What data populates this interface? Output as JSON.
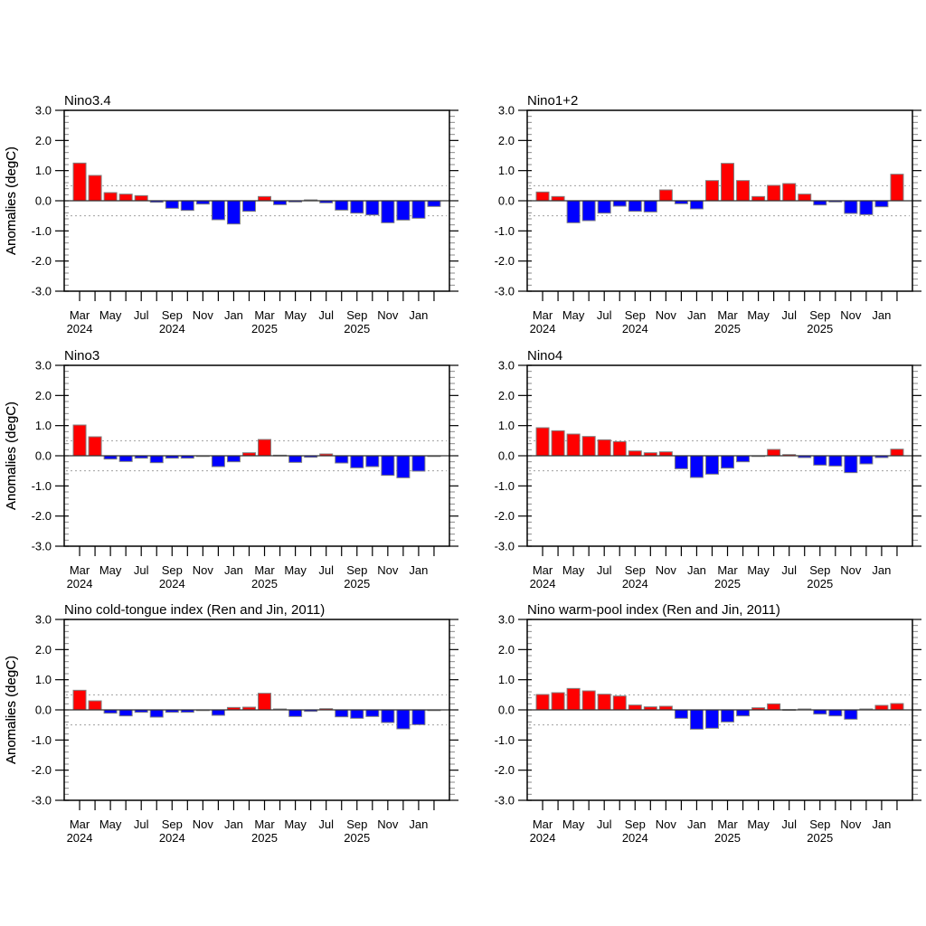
{
  "colors": {
    "positive": "#ff0000",
    "negative": "#0000ff",
    "bar_edge": "#808080",
    "frame": "#000000",
    "threshold_line": "#a0a0a0"
  },
  "months": [
    "Mar 2024",
    "Apr 2024",
    "May 2024",
    "Jun 2024",
    "Jul 2024",
    "Aug 2024",
    "Sep 2024",
    "Oct 2024",
    "Nov 2024",
    "Dec 2024",
    "Jan 2025",
    "Feb 2025",
    "Mar 2025",
    "Apr 2025",
    "May 2025",
    "Jun 2025",
    "Jul 2025",
    "Aug 2025",
    "Sep 2025",
    "Oct 2025",
    "Nov 2025",
    "Dec 2025",
    "Jan 2026",
    "Feb 2026"
  ],
  "chart_data": [
    {
      "type": "bar",
      "title": "Nino3.4",
      "xlabel": "",
      "ylabel": "Anomalies (degC)",
      "ylim": [
        -3.0,
        3.0
      ],
      "yticks": [
        "3.0",
        "2.0",
        "1.0",
        "0.0",
        "-1.0",
        "-2.0",
        "-3.0"
      ],
      "xtick_labels": [
        [
          "Mar",
          "2024"
        ],
        [
          "May",
          ""
        ],
        [
          "Jul",
          ""
        ],
        [
          "Sep",
          "2024"
        ],
        [
          "Nov",
          ""
        ],
        [
          "Jan",
          ""
        ],
        [
          "Mar",
          "2025"
        ],
        [
          "May",
          ""
        ],
        [
          "Jul",
          ""
        ],
        [
          "Sep",
          "2025"
        ],
        [
          "Nov",
          ""
        ],
        [
          "Jan",
          ""
        ]
      ],
      "reference_lines": [
        0.5,
        -0.5
      ],
      "values": [
        1.25,
        0.84,
        0.27,
        0.22,
        0.17,
        -0.05,
        -0.25,
        -0.32,
        -0.11,
        -0.63,
        -0.77,
        -0.35,
        0.14,
        -0.13,
        -0.04,
        0.03,
        -0.07,
        -0.31,
        -0.41,
        -0.47,
        -0.73,
        -0.64,
        -0.58,
        -0.19
      ]
    },
    {
      "type": "bar",
      "title": "Nino1+2",
      "xlabel": "",
      "ylabel": "Anomalies (degC)",
      "ylim": [
        -3.0,
        3.0
      ],
      "yticks": [
        "3.0",
        "2.0",
        "1.0",
        "0.0",
        "-1.0",
        "-2.0",
        "-3.0"
      ],
      "xtick_labels": [
        [
          "Mar",
          "2024"
        ],
        [
          "May",
          ""
        ],
        [
          "Jul",
          ""
        ],
        [
          "Sep",
          "2024"
        ],
        [
          "Nov",
          ""
        ],
        [
          "Jan",
          ""
        ],
        [
          "Mar",
          "2025"
        ],
        [
          "May",
          ""
        ],
        [
          "Jul",
          ""
        ],
        [
          "Sep",
          "2025"
        ],
        [
          "Nov",
          ""
        ],
        [
          "Jan",
          ""
        ]
      ],
      "reference_lines": [
        0.5,
        -0.5
      ],
      "values": [
        0.29,
        0.14,
        -0.73,
        -0.66,
        -0.41,
        -0.18,
        -0.35,
        -0.37,
        0.36,
        -0.1,
        -0.27,
        0.67,
        1.24,
        0.67,
        0.14,
        0.51,
        0.57,
        0.22,
        -0.14,
        -0.04,
        -0.42,
        -0.46,
        -0.2,
        0.88
      ]
    },
    {
      "type": "bar",
      "title": "Nino3",
      "xlabel": "",
      "ylabel": "Anomalies (degC)",
      "ylim": [
        -3.0,
        3.0
      ],
      "yticks": [
        "3.0",
        "2.0",
        "1.0",
        "0.0",
        "-1.0",
        "-2.0",
        "-3.0"
      ],
      "xtick_labels": [
        [
          "Mar",
          "2024"
        ],
        [
          "May",
          ""
        ],
        [
          "Jul",
          ""
        ],
        [
          "Sep",
          "2024"
        ],
        [
          "Nov",
          ""
        ],
        [
          "Jan",
          ""
        ],
        [
          "Mar",
          "2025"
        ],
        [
          "May",
          ""
        ],
        [
          "Jul",
          ""
        ],
        [
          "Sep",
          "2025"
        ],
        [
          "Nov",
          ""
        ],
        [
          "Jan",
          ""
        ]
      ],
      "reference_lines": [
        0.5,
        -0.5
      ],
      "values": [
        1.02,
        0.63,
        -0.11,
        -0.19,
        -0.08,
        -0.23,
        -0.08,
        -0.08,
        0.0,
        -0.36,
        -0.2,
        0.1,
        0.54,
        0.02,
        -0.22,
        -0.05,
        0.06,
        -0.24,
        -0.4,
        -0.36,
        -0.65,
        -0.73,
        -0.51,
        0.0
      ]
    },
    {
      "type": "bar",
      "title": "Nino4",
      "xlabel": "",
      "ylabel": "Anomalies (degC)",
      "ylim": [
        -3.0,
        3.0
      ],
      "yticks": [
        "3.0",
        "2.0",
        "1.0",
        "0.0",
        "-1.0",
        "-2.0",
        "-3.0"
      ],
      "xtick_labels": [
        [
          "Mar",
          "2024"
        ],
        [
          "May",
          ""
        ],
        [
          "Jul",
          ""
        ],
        [
          "Sep",
          "2024"
        ],
        [
          "Nov",
          ""
        ],
        [
          "Jan",
          ""
        ],
        [
          "Mar",
          "2025"
        ],
        [
          "May",
          ""
        ],
        [
          "Jul",
          ""
        ],
        [
          "Sep",
          "2025"
        ],
        [
          "Nov",
          ""
        ],
        [
          "Jan",
          ""
        ]
      ],
      "reference_lines": [
        0.5,
        -0.5
      ],
      "values": [
        0.93,
        0.83,
        0.72,
        0.64,
        0.53,
        0.47,
        0.16,
        0.1,
        0.13,
        -0.43,
        -0.72,
        -0.61,
        -0.41,
        -0.2,
        -0.02,
        0.21,
        0.04,
        -0.06,
        -0.31,
        -0.34,
        -0.56,
        -0.27,
        -0.06,
        0.22
      ]
    },
    {
      "type": "bar",
      "title": "Nino cold-tongue index (Ren and Jin, 2011)",
      "xlabel": "",
      "ylabel": "Anomalies (degC)",
      "ylim": [
        -3.0,
        3.0
      ],
      "yticks": [
        "3.0",
        "2.0",
        "1.0",
        "0.0",
        "-1.0",
        "-2.0",
        "-3.0"
      ],
      "xtick_labels": [
        [
          "Mar",
          "2024"
        ],
        [
          "May",
          ""
        ],
        [
          "Jul",
          ""
        ],
        [
          "Sep",
          "2024"
        ],
        [
          "Nov",
          ""
        ],
        [
          "Jan",
          ""
        ],
        [
          "Mar",
          "2025"
        ],
        [
          "May",
          ""
        ],
        [
          "Jul",
          ""
        ],
        [
          "Sep",
          "2025"
        ],
        [
          "Nov",
          ""
        ],
        [
          "Jan",
          ""
        ]
      ],
      "reference_lines": [
        0.5,
        -0.5
      ],
      "values": [
        0.65,
        0.3,
        -0.11,
        -0.2,
        -0.08,
        -0.24,
        -0.08,
        -0.08,
        -0.01,
        -0.18,
        0.08,
        0.09,
        0.55,
        0.03,
        -0.22,
        -0.05,
        0.04,
        -0.23,
        -0.28,
        -0.22,
        -0.42,
        -0.63,
        -0.49,
        0.0
      ]
    },
    {
      "type": "bar",
      "title": "Nino warm-pool index (Ren and Jin, 2011)",
      "xlabel": "",
      "ylabel": "Anomalies (degC)",
      "ylim": [
        -3.0,
        3.0
      ],
      "yticks": [
        "3.0",
        "2.0",
        "1.0",
        "0.0",
        "-1.0",
        "-2.0",
        "-3.0"
      ],
      "xtick_labels": [
        [
          "Mar",
          "2024"
        ],
        [
          "May",
          ""
        ],
        [
          "Jul",
          ""
        ],
        [
          "Sep",
          "2024"
        ],
        [
          "Nov",
          ""
        ],
        [
          "Jan",
          ""
        ],
        [
          "Mar",
          "2025"
        ],
        [
          "May",
          ""
        ],
        [
          "Jul",
          ""
        ],
        [
          "Sep",
          "2025"
        ],
        [
          "Nov",
          ""
        ],
        [
          "Jan",
          ""
        ]
      ],
      "reference_lines": [
        0.5,
        -0.5
      ],
      "values": [
        0.51,
        0.57,
        0.71,
        0.63,
        0.52,
        0.46,
        0.16,
        0.1,
        0.12,
        -0.28,
        -0.64,
        -0.61,
        -0.4,
        -0.2,
        0.07,
        0.2,
        0.01,
        0.03,
        -0.14,
        -0.2,
        -0.31,
        0.03,
        0.15,
        0.21
      ]
    }
  ]
}
